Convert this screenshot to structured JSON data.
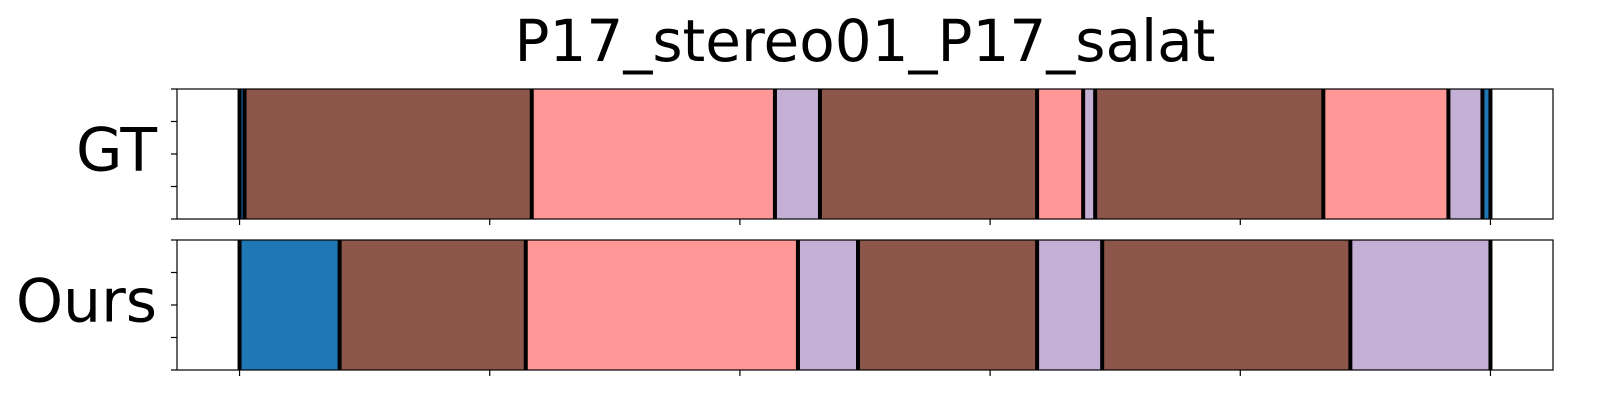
{
  "chart_data": {
    "type": "timeline",
    "title": "P17_stereo01_P17_salat",
    "xlim": [
      -0.25,
      5.25
    ],
    "xticks": [
      0,
      1,
      2,
      3,
      4,
      5
    ],
    "ylim": [
      0,
      1
    ],
    "yticks": [
      0,
      0.25,
      0.5,
      0.75,
      1
    ],
    "boundary_color": "#000000",
    "rows": [
      {
        "name": "GT",
        "segments": [
          {
            "start": 0,
            "end": 0.02,
            "color": "#1f77b4"
          },
          {
            "start": 0.02,
            "end": 1.168,
            "color": "#8c564b"
          },
          {
            "start": 1.168,
            "end": 2.14,
            "color": "#ff9896"
          },
          {
            "start": 2.14,
            "end": 2.32,
            "color": "#c5b0d5"
          },
          {
            "start": 2.32,
            "end": 3.188,
            "color": "#8c564b"
          },
          {
            "start": 3.188,
            "end": 3.372,
            "color": "#ff9896"
          },
          {
            "start": 3.372,
            "end": 3.42,
            "color": "#c5b0d5"
          },
          {
            "start": 3.42,
            "end": 4.332,
            "color": "#8c564b"
          },
          {
            "start": 4.332,
            "end": 4.832,
            "color": "#ff9896"
          },
          {
            "start": 4.832,
            "end": 4.968,
            "color": "#c5b0d5"
          },
          {
            "start": 4.968,
            "end": 5.0,
            "color": "#1f77b4"
          }
        ]
      },
      {
        "name": "Ours",
        "segments": [
          {
            "start": 0,
            "end": 0.4,
            "color": "#1f77b4"
          },
          {
            "start": 0.4,
            "end": 1.144,
            "color": "#8c564b"
          },
          {
            "start": 1.144,
            "end": 2.232,
            "color": "#ff9896"
          },
          {
            "start": 2.232,
            "end": 2.472,
            "color": "#c5b0d5"
          },
          {
            "start": 2.472,
            "end": 3.188,
            "color": "#8c564b"
          },
          {
            "start": 3.188,
            "end": 3.448,
            "color": "#c5b0d5"
          },
          {
            "start": 3.448,
            "end": 4.44,
            "color": "#8c564b"
          },
          {
            "start": 4.44,
            "end": 5.0,
            "color": "#c5b0d5"
          }
        ]
      }
    ]
  }
}
